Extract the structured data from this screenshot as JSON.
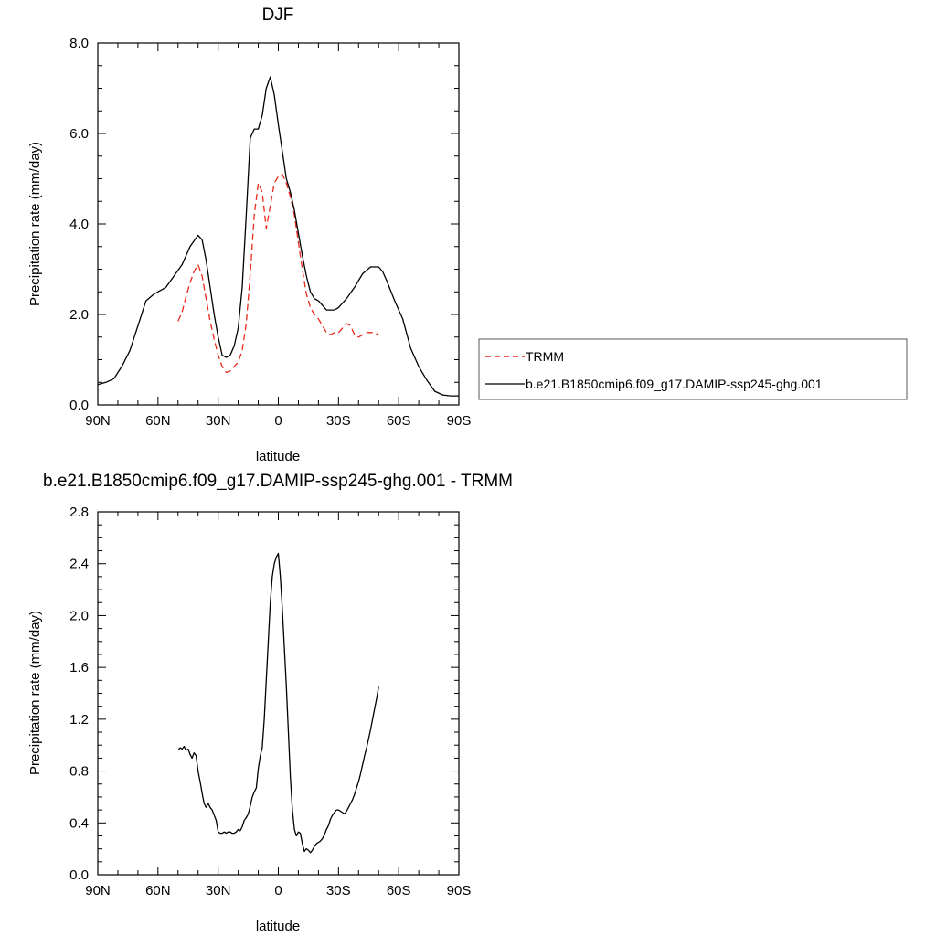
{
  "chart_data": [
    {
      "type": "line",
      "title": "DJF",
      "xlabel": "latitude",
      "ylabel": "Precipitation rate (mm/day)",
      "xlim": [
        90,
        -90
      ],
      "ylim": [
        0,
        8
      ],
      "grid": false,
      "x_ticks": [
        {
          "value": 90,
          "label": "90N"
        },
        {
          "value": 60,
          "label": "60N"
        },
        {
          "value": 30,
          "label": "30N"
        },
        {
          "value": 0,
          "label": "0"
        },
        {
          "value": -30,
          "label": "30S"
        },
        {
          "value": -60,
          "label": "60S"
        },
        {
          "value": -90,
          "label": "90S"
        }
      ],
      "y_ticks": [
        {
          "value": 0,
          "label": "0.0"
        },
        {
          "value": 2,
          "label": "2.0"
        },
        {
          "value": 4,
          "label": "4.0"
        },
        {
          "value": 6,
          "label": "6.0"
        },
        {
          "value": 8,
          "label": "8.0"
        }
      ],
      "legend_position": "right",
      "series": [
        {
          "name": "TRMM",
          "color": "#e8291c",
          "dash": "dashed",
          "x": [
            50,
            48,
            46,
            44,
            42,
            40,
            38,
            36,
            34,
            32,
            30,
            28,
            26,
            24,
            22,
            20,
            18,
            16,
            14,
            12,
            10,
            8,
            6,
            4,
            2,
            0,
            -2,
            -4,
            -6,
            -8,
            -10,
            -12,
            -14,
            -16,
            -18,
            -20,
            -22,
            -24,
            -26,
            -28,
            -30,
            -32,
            -34,
            -36,
            -38,
            -40,
            -42,
            -44,
            -46,
            -48,
            -50
          ],
          "y": [
            1.85,
            2.05,
            2.4,
            2.7,
            2.95,
            3.1,
            2.85,
            2.35,
            1.85,
            1.45,
            1.1,
            0.85,
            0.72,
            0.75,
            0.85,
            0.95,
            1.2,
            1.8,
            2.9,
            4.2,
            4.9,
            4.7,
            3.9,
            4.4,
            4.9,
            5.05,
            5.1,
            4.9,
            4.6,
            4.2,
            3.6,
            3.0,
            2.45,
            2.15,
            2.0,
            1.9,
            1.75,
            1.6,
            1.55,
            1.6,
            1.6,
            1.7,
            1.8,
            1.75,
            1.55,
            1.5,
            1.55,
            1.6,
            1.6,
            1.6,
            1.55
          ]
        },
        {
          "name": "b.e21.B1850cmip6.f09_g17.DAMIP-ssp245-ghg.001",
          "color": "#000000",
          "dash": "solid",
          "x": [
            90,
            86,
            82,
            78,
            74,
            70,
            66,
            62,
            60,
            56,
            52,
            48,
            44,
            40,
            38,
            36,
            34,
            32,
            30,
            28,
            26,
            24,
            22,
            20,
            18,
            16,
            14,
            12,
            10,
            8,
            6,
            4,
            2,
            0,
            -2,
            -4,
            -6,
            -8,
            -10,
            -12,
            -14,
            -16,
            -18,
            -20,
            -22,
            -24,
            -26,
            -28,
            -30,
            -34,
            -38,
            -42,
            -46,
            -50,
            -52,
            -54,
            -58,
            -62,
            -66,
            -70,
            -74,
            -78,
            -82,
            -86,
            -90
          ],
          "y": [
            0.45,
            0.5,
            0.58,
            0.85,
            1.2,
            1.75,
            2.3,
            2.45,
            2.5,
            2.6,
            2.85,
            3.1,
            3.5,
            3.75,
            3.65,
            3.2,
            2.6,
            2.0,
            1.5,
            1.1,
            1.05,
            1.1,
            1.3,
            1.7,
            2.6,
            4.2,
            5.9,
            6.1,
            6.1,
            6.4,
            7.0,
            7.25,
            6.85,
            6.2,
            5.6,
            5.0,
            4.7,
            4.3,
            3.8,
            3.3,
            2.85,
            2.5,
            2.35,
            2.3,
            2.2,
            2.1,
            2.1,
            2.1,
            2.15,
            2.35,
            2.6,
            2.9,
            3.05,
            3.05,
            2.95,
            2.75,
            2.3,
            1.9,
            1.25,
            0.85,
            0.55,
            0.3,
            0.22,
            0.2,
            0.2
          ]
        }
      ]
    },
    {
      "type": "line",
      "title": "b.e21.B1850cmip6.f09_g17.DAMIP-ssp245-ghg.001 - TRMM",
      "xlabel": "latitude",
      "ylabel": "Precipitation rate (mm/day)",
      "xlim": [
        90,
        -90
      ],
      "ylim": [
        0,
        2.8
      ],
      "grid": false,
      "x_ticks": [
        {
          "value": 90,
          "label": "90N"
        },
        {
          "value": 60,
          "label": "60N"
        },
        {
          "value": 30,
          "label": "30N"
        },
        {
          "value": 0,
          "label": "0"
        },
        {
          "value": -30,
          "label": "30S"
        },
        {
          "value": -60,
          "label": "60S"
        },
        {
          "value": -90,
          "label": "90S"
        }
      ],
      "y_ticks": [
        {
          "value": 0,
          "label": "0.0"
        },
        {
          "value": 0.4,
          "label": "0.4"
        },
        {
          "value": 0.8,
          "label": "0.8"
        },
        {
          "value": 1.2,
          "label": "1.2"
        },
        {
          "value": 1.6,
          "label": "1.6"
        },
        {
          "value": 2.0,
          "label": "2.0"
        },
        {
          "value": 2.4,
          "label": "2.4"
        },
        {
          "value": 2.8,
          "label": "2.8"
        }
      ],
      "series": [
        {
          "color": "#000000",
          "dash": "solid",
          "x": [
            50,
            49,
            48,
            47,
            46,
            45,
            44,
            43,
            42,
            41,
            40,
            39,
            38,
            37,
            36,
            35,
            34,
            33,
            32,
            31,
            30,
            29,
            28,
            27,
            26,
            25,
            24,
            23,
            22,
            21,
            20,
            19,
            18,
            17,
            16,
            15,
            14,
            13,
            12,
            11,
            10,
            9,
            8,
            7,
            6,
            5,
            4,
            3,
            2,
            1,
            0,
            -1,
            -2,
            -3,
            -4,
            -5,
            -6,
            -7,
            -8,
            -9,
            -10,
            -11,
            -12,
            -13,
            -14,
            -15,
            -16,
            -17,
            -18,
            -19,
            -20,
            -21,
            -22,
            -23,
            -24,
            -25,
            -26,
            -27,
            -28,
            -29,
            -30,
            -31,
            -32,
            -33,
            -34,
            -35,
            -36,
            -37,
            -38,
            -39,
            -40,
            -41,
            -42,
            -43,
            -44,
            -45,
            -46,
            -47,
            -48,
            -49,
            -50
          ],
          "y": [
            0.96,
            0.98,
            0.97,
            0.99,
            0.96,
            0.97,
            0.93,
            0.9,
            0.94,
            0.92,
            0.8,
            0.72,
            0.63,
            0.55,
            0.52,
            0.55,
            0.52,
            0.5,
            0.46,
            0.42,
            0.33,
            0.32,
            0.32,
            0.33,
            0.32,
            0.33,
            0.33,
            0.32,
            0.32,
            0.33,
            0.35,
            0.34,
            0.37,
            0.42,
            0.44,
            0.47,
            0.53,
            0.6,
            0.64,
            0.67,
            0.82,
            0.92,
            0.98,
            1.2,
            1.5,
            1.8,
            2.1,
            2.3,
            2.4,
            2.45,
            2.48,
            2.3,
            2.05,
            1.75,
            1.45,
            1.1,
            0.75,
            0.5,
            0.35,
            0.3,
            0.33,
            0.32,
            0.24,
            0.18,
            0.2,
            0.19,
            0.17,
            0.19,
            0.22,
            0.24,
            0.25,
            0.26,
            0.28,
            0.31,
            0.35,
            0.38,
            0.43,
            0.46,
            0.48,
            0.5,
            0.5,
            0.49,
            0.48,
            0.47,
            0.49,
            0.52,
            0.55,
            0.58,
            0.62,
            0.67,
            0.72,
            0.78,
            0.85,
            0.92,
            0.98,
            1.05,
            1.12,
            1.2,
            1.28,
            1.36,
            1.45
          ]
        }
      ]
    }
  ]
}
